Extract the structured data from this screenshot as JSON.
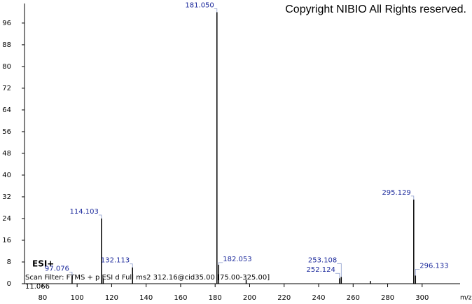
{
  "chart_data": {
    "type": "spectrum",
    "title": "Copyright NIBIO All Rights reserved.",
    "annotations": [
      "ESI+",
      "Scan Filter: FTMS + p ESI d Full ms2 312.16@cid35.00 [75.00-325.00]",
      "11.066"
    ],
    "x_label": "m/z",
    "x": [
      97.076,
      114.103,
      115.1,
      132.113,
      181.05,
      182.053,
      198.0,
      252.124,
      253.108,
      270.0,
      295.129,
      296.133
    ],
    "values": [
      3,
      24,
      2,
      6,
      100,
      7,
      1.5,
      2,
      2.5,
      1,
      31,
      3
    ],
    "x_labels": [
      "97.076",
      "114.103",
      null,
      "132.113",
      "181.050",
      "182.053",
      null,
      "252.124",
      "253.108",
      null,
      "295.129",
      "296.133"
    ],
    "color": "#000000",
    "label_color": "#1c2a9c",
    "xlim": [
      69.5,
      322
    ],
    "ylim": [
      0,
      103.2
    ],
    "xticks": [
      80,
      100,
      120,
      140,
      160,
      180,
      200,
      220,
      240,
      260,
      280,
      300
    ],
    "yticks": [
      0,
      8,
      16,
      24,
      32,
      40,
      48,
      56,
      64,
      72,
      80,
      88,
      96
    ]
  }
}
